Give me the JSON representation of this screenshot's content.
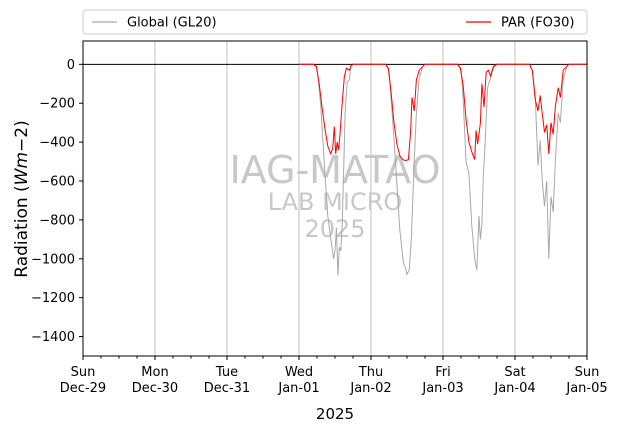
{
  "chart_data": {
    "type": "line",
    "title": "",
    "xlabel": "2025",
    "ylabel": "Radiation (Wm−2)",
    "ylabel_parts": {
      "main": "Radiation (",
      "italic": "Wm",
      "tail": "−2)"
    },
    "ylim": [
      -1500,
      120
    ],
    "y_ticks": [
      0,
      -200,
      -400,
      -600,
      -800,
      -1000,
      -1200,
      -1400
    ],
    "xlim_days": [
      0,
      7
    ],
    "x_ticks": [
      {
        "day": "Sun",
        "date": "Dec-29"
      },
      {
        "day": "Mon",
        "date": "Dec-30"
      },
      {
        "day": "Tue",
        "date": "Dec-31"
      },
      {
        "day": "Wed",
        "date": "Jan-01"
      },
      {
        "day": "Thu",
        "date": "Jan-02"
      },
      {
        "day": "Fri",
        "date": "Jan-03"
      },
      {
        "day": "Sat",
        "date": "Jan-04"
      },
      {
        "day": "Sun",
        "date": "Jan-05"
      }
    ],
    "vertical_grid": true,
    "zero_line": true,
    "legend_position": "top",
    "watermark": {
      "line1": "IAG-MATAO",
      "line2": "LAB MICRO",
      "line3": "2025"
    },
    "series": [
      {
        "name": "Global (GL20)",
        "color": "#a9a9a9",
        "points": [
          [
            3.0,
            0
          ],
          [
            3.2,
            0
          ],
          [
            3.25,
            -20
          ],
          [
            3.3,
            -200
          ],
          [
            3.35,
            -500
          ],
          [
            3.4,
            -780
          ],
          [
            3.45,
            -920
          ],
          [
            3.48,
            -1000
          ],
          [
            3.5,
            -960
          ],
          [
            3.52,
            -840
          ],
          [
            3.54,
            -1085
          ],
          [
            3.56,
            -940
          ],
          [
            3.58,
            -960
          ],
          [
            3.6,
            -820
          ],
          [
            3.62,
            -560
          ],
          [
            3.64,
            -250
          ],
          [
            3.67,
            -90
          ],
          [
            3.7,
            -80
          ],
          [
            3.72,
            -10
          ],
          [
            3.75,
            0
          ],
          [
            4.0,
            0
          ],
          [
            4.2,
            0
          ],
          [
            4.25,
            -30
          ],
          [
            4.3,
            -280
          ],
          [
            4.35,
            -560
          ],
          [
            4.4,
            -850
          ],
          [
            4.45,
            -1020
          ],
          [
            4.48,
            -1050
          ],
          [
            4.5,
            -1080
          ],
          [
            4.53,
            -1060
          ],
          [
            4.56,
            -900
          ],
          [
            4.6,
            -500
          ],
          [
            4.63,
            -250
          ],
          [
            4.67,
            -70
          ],
          [
            4.72,
            -10
          ],
          [
            4.75,
            0
          ],
          [
            5.0,
            0
          ],
          [
            5.2,
            0
          ],
          [
            5.25,
            -20
          ],
          [
            5.28,
            -180
          ],
          [
            5.32,
            -500
          ],
          [
            5.36,
            -560
          ],
          [
            5.4,
            -830
          ],
          [
            5.44,
            -1000
          ],
          [
            5.47,
            -1060
          ],
          [
            5.5,
            -780
          ],
          [
            5.52,
            -900
          ],
          [
            5.54,
            -820
          ],
          [
            5.56,
            -580
          ],
          [
            5.58,
            -440
          ],
          [
            5.62,
            -120
          ],
          [
            5.66,
            -70
          ],
          [
            5.7,
            -20
          ],
          [
            5.75,
            0
          ],
          [
            6.0,
            0
          ],
          [
            6.2,
            0
          ],
          [
            6.24,
            -30
          ],
          [
            6.28,
            -160
          ],
          [
            6.32,
            -520
          ],
          [
            6.35,
            -390
          ],
          [
            6.38,
            -610
          ],
          [
            6.41,
            -730
          ],
          [
            6.44,
            -600
          ],
          [
            6.47,
            -1000
          ],
          [
            6.5,
            -680
          ],
          [
            6.53,
            -760
          ],
          [
            6.56,
            -500
          ],
          [
            6.6,
            -250
          ],
          [
            6.63,
            -300
          ],
          [
            6.67,
            -80
          ],
          [
            6.72,
            -10
          ],
          [
            6.75,
            0
          ],
          [
            7.0,
            0
          ]
        ]
      },
      {
        "name": "PAR (FO30)",
        "color": "#ff0000",
        "points": [
          [
            3.0,
            0
          ],
          [
            3.2,
            0
          ],
          [
            3.24,
            -10
          ],
          [
            3.28,
            -100
          ],
          [
            3.32,
            -220
          ],
          [
            3.36,
            -330
          ],
          [
            3.4,
            -420
          ],
          [
            3.44,
            -460
          ],
          [
            3.47,
            -430
          ],
          [
            3.49,
            -320
          ],
          [
            3.51,
            -460
          ],
          [
            3.53,
            -400
          ],
          [
            3.55,
            -440
          ],
          [
            3.57,
            -360
          ],
          [
            3.6,
            -200
          ],
          [
            3.63,
            -60
          ],
          [
            3.66,
            -20
          ],
          [
            3.7,
            -30
          ],
          [
            3.72,
            -10
          ],
          [
            3.75,
            0
          ],
          [
            4.0,
            0
          ],
          [
            4.2,
            0
          ],
          [
            4.24,
            -20
          ],
          [
            4.28,
            -150
          ],
          [
            4.32,
            -300
          ],
          [
            4.36,
            -410
          ],
          [
            4.4,
            -470
          ],
          [
            4.44,
            -490
          ],
          [
            4.48,
            -495
          ],
          [
            4.52,
            -490
          ],
          [
            4.55,
            -350
          ],
          [
            4.57,
            -170
          ],
          [
            4.6,
            -240
          ],
          [
            4.63,
            -80
          ],
          [
            4.67,
            -30
          ],
          [
            4.72,
            -10
          ],
          [
            4.75,
            0
          ],
          [
            5.0,
            0
          ],
          [
            5.2,
            0
          ],
          [
            5.24,
            -20
          ],
          [
            5.28,
            -110
          ],
          [
            5.32,
            -280
          ],
          [
            5.36,
            -400
          ],
          [
            5.4,
            -450
          ],
          [
            5.44,
            -490
          ],
          [
            5.46,
            -340
          ],
          [
            5.48,
            -410
          ],
          [
            5.5,
            -360
          ],
          [
            5.52,
            -300
          ],
          [
            5.54,
            -100
          ],
          [
            5.57,
            -220
          ],
          [
            5.6,
            -40
          ],
          [
            5.63,
            -30
          ],
          [
            5.66,
            -60
          ],
          [
            5.7,
            -10
          ],
          [
            5.75,
            0
          ],
          [
            6.0,
            0
          ],
          [
            6.2,
            0
          ],
          [
            6.24,
            -30
          ],
          [
            6.28,
            -180
          ],
          [
            6.32,
            -240
          ],
          [
            6.35,
            -160
          ],
          [
            6.38,
            -260
          ],
          [
            6.41,
            -350
          ],
          [
            6.44,
            -310
          ],
          [
            6.47,
            -460
          ],
          [
            6.5,
            -300
          ],
          [
            6.53,
            -360
          ],
          [
            6.56,
            -220
          ],
          [
            6.6,
            -120
          ],
          [
            6.63,
            -170
          ],
          [
            6.67,
            -30
          ],
          [
            6.72,
            -10
          ],
          [
            6.75,
            0
          ],
          [
            7.0,
            0
          ]
        ]
      }
    ]
  }
}
